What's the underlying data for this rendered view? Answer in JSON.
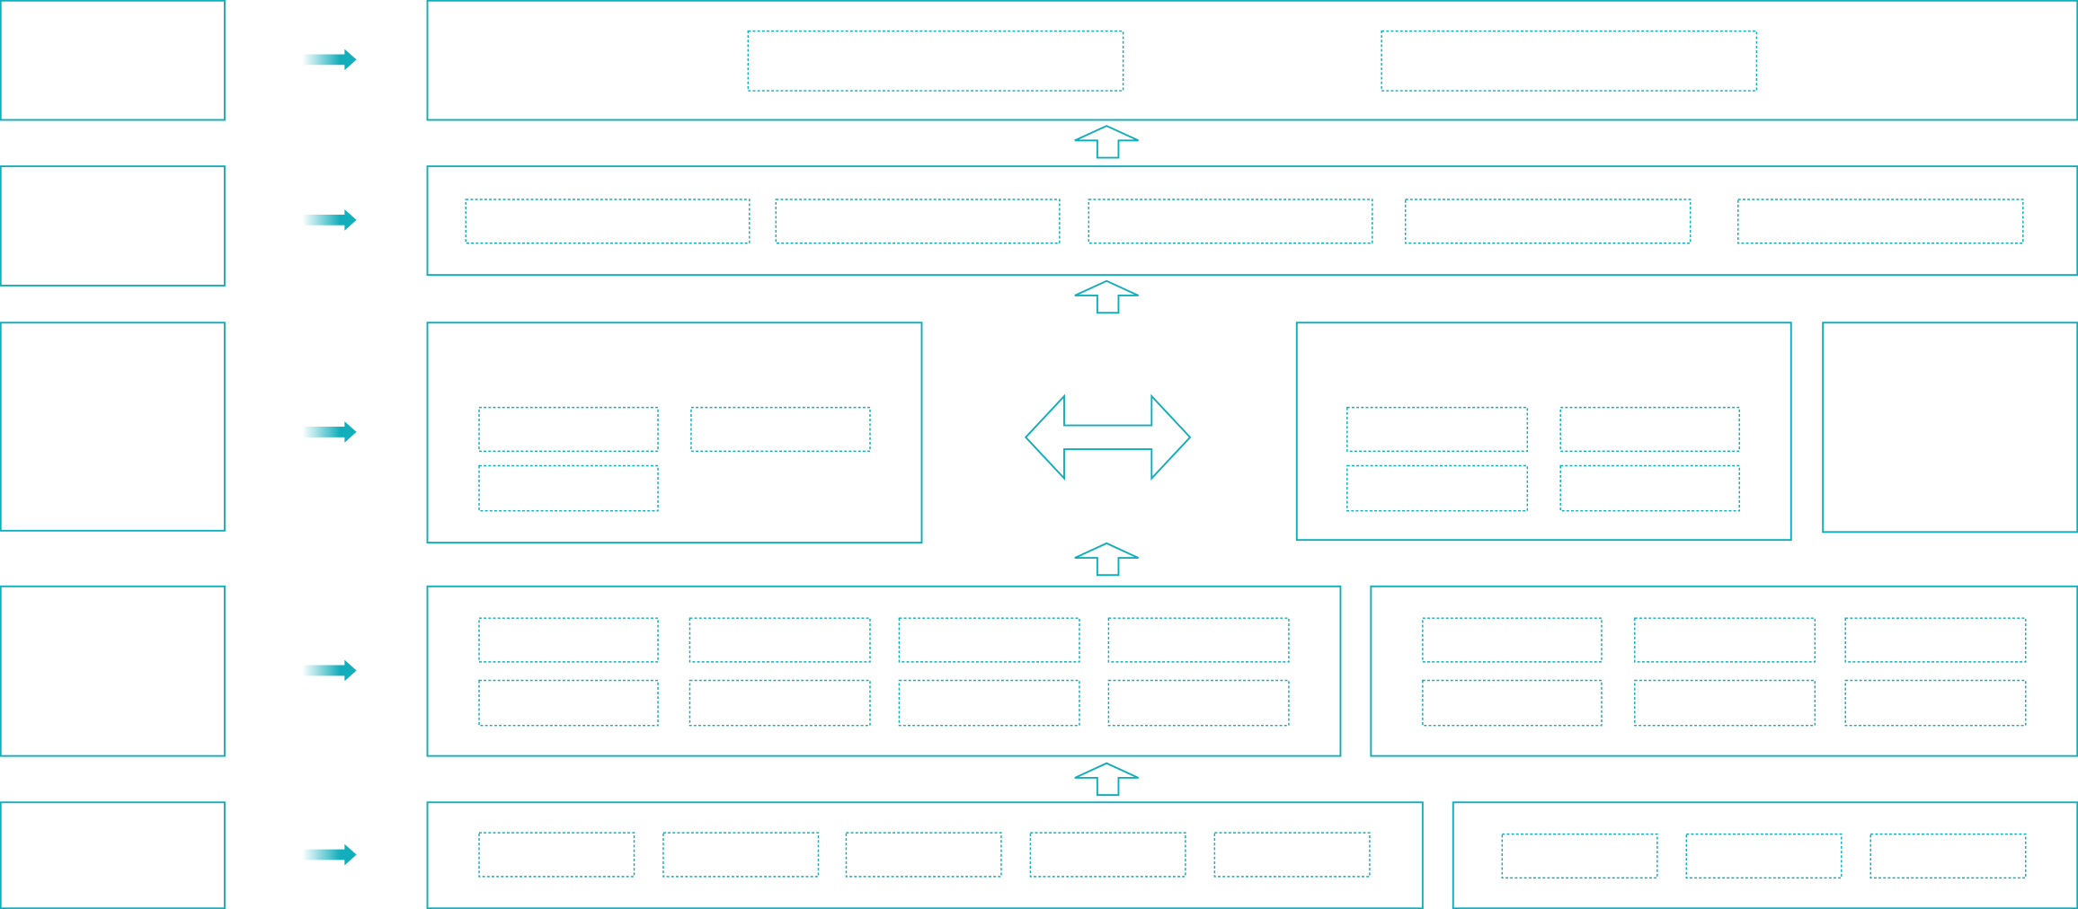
{
  "colors": {
    "accent": "#13aebb",
    "background": "#ffffff"
  },
  "icons": {
    "side_arrow": "arrow-right-icon",
    "layer_arrow": "arrow-up-icon",
    "exchange_arrow": "double-arrow-icon"
  }
}
